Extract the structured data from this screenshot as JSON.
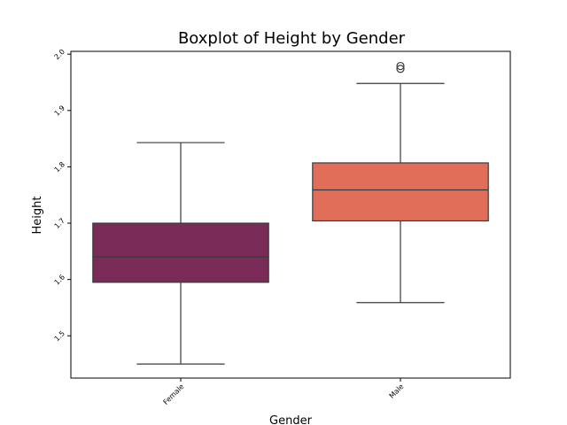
{
  "chart_data": {
    "type": "box",
    "title": "Boxplot of Height by Gender",
    "xlabel": "Gender",
    "ylabel": "Height",
    "ylim": [
      1.425,
      2.005
    ],
    "yticks": [
      "1.5",
      "1.6",
      "1.7",
      "1.8",
      "1.9",
      "2.0"
    ],
    "grid": false,
    "categories": [
      "Female",
      "Male"
    ],
    "boxes": [
      {
        "label": "Female",
        "whisker_low": 1.45,
        "q1": 1.595,
        "median": 1.64,
        "q3": 1.7,
        "whisker_high": 1.843,
        "outliers": [],
        "color": "#7a2b57"
      },
      {
        "label": "Male",
        "whisker_low": 1.559,
        "q1": 1.704,
        "median": 1.759,
        "q3": 1.807,
        "whisker_high": 1.948,
        "outliers": [
          1.974,
          1.979
        ],
        "color": "#e06e58"
      }
    ]
  }
}
